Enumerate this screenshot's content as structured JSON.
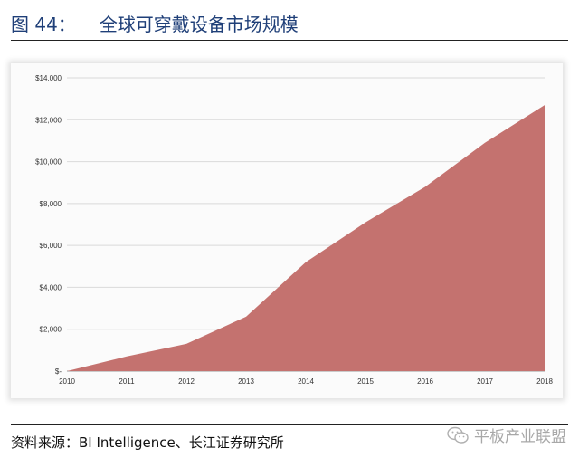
{
  "figure": {
    "number": "图 44：",
    "title": "全球可穿戴设备市场规模"
  },
  "source": "资料来源：BI Intelligence、长江证券研究所",
  "watermark": "平板产业联盟",
  "colors": {
    "area_fill": "#c4726f",
    "grid": "#dadada",
    "title": "#1f3f78"
  },
  "chart_data": {
    "type": "area",
    "x": [
      "2010",
      "2011",
      "2012",
      "2013",
      "2014",
      "2015",
      "2016",
      "2017",
      "2018"
    ],
    "series": [
      {
        "values": [
          0,
          700,
          1300,
          2600,
          5200,
          7100,
          8800,
          10900,
          12700
        ]
      }
    ],
    "y_ticks": [
      0,
      2000,
      4000,
      6000,
      8000,
      10000,
      12000,
      14000
    ],
    "y_tick_labels": [
      "$-",
      "$2,000",
      "$4,000",
      "$6,000",
      "$8,000",
      "$10,000",
      "$12,000",
      "$14,000"
    ],
    "ylim": [
      0,
      14000
    ],
    "grid": true,
    "legend": "none"
  }
}
